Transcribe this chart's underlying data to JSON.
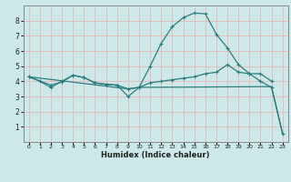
{
  "xlabel": "Humidex (Indice chaleur)",
  "bg_color": "#cce8e8",
  "grid_color": "#e8b8b8",
  "line_color": "#2e7d7d",
  "xlim": [
    -0.5,
    23.5
  ],
  "ylim": [
    0,
    9
  ],
  "xticks": [
    0,
    1,
    2,
    3,
    4,
    5,
    6,
    7,
    8,
    9,
    10,
    11,
    12,
    13,
    14,
    15,
    16,
    17,
    18,
    19,
    20,
    21,
    22,
    23
  ],
  "yticks": [
    1,
    2,
    3,
    4,
    5,
    6,
    7,
    8
  ],
  "line1_x": [
    0,
    1,
    2,
    3,
    4,
    5,
    6,
    7,
    8,
    9,
    10,
    11,
    12,
    13,
    14,
    15,
    16,
    17,
    18,
    19,
    20,
    21,
    22,
    23
  ],
  "line1_y": [
    4.3,
    4.0,
    3.6,
    4.0,
    4.4,
    4.25,
    3.9,
    3.8,
    3.75,
    3.0,
    3.6,
    5.0,
    6.5,
    7.6,
    8.2,
    8.5,
    8.45,
    7.1,
    6.2,
    5.1,
    4.5,
    4.0,
    3.6,
    0.55
  ],
  "line2_x": [
    0,
    2,
    3,
    4,
    5,
    6,
    7,
    8,
    9,
    10,
    11,
    12,
    13,
    14,
    15,
    16,
    17,
    18,
    19,
    20,
    21,
    22
  ],
  "line2_y": [
    4.3,
    3.75,
    3.95,
    4.4,
    4.25,
    3.9,
    3.8,
    3.75,
    3.5,
    3.6,
    3.9,
    4.0,
    4.1,
    4.2,
    4.3,
    4.5,
    4.6,
    5.1,
    4.6,
    4.5,
    4.5,
    4.0
  ],
  "line3_x": [
    0,
    9,
    10,
    22,
    23
  ],
  "line3_y": [
    4.3,
    3.5,
    3.6,
    3.65,
    0.55
  ]
}
